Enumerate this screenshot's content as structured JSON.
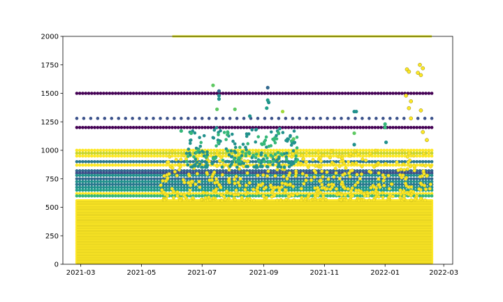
{
  "chart_data": {
    "type": "scatter",
    "title": "",
    "xlabel": "",
    "ylabel": "",
    "xlim": [
      "2021-02-11",
      "2022-03-10"
    ],
    "ylim": [
      0,
      2000
    ],
    "grid": false,
    "legend": "none",
    "x_ticks": [
      {
        "date": "2021-03-01",
        "label": "2021-03"
      },
      {
        "date": "2021-05-01",
        "label": "2021-05"
      },
      {
        "date": "2021-07-01",
        "label": "2021-07"
      },
      {
        "date": "2021-09-01",
        "label": "2021-09"
      },
      {
        "date": "2021-11-01",
        "label": "2021-11"
      },
      {
        "date": "2022-01-01",
        "label": "2022-01"
      },
      {
        "date": "2022-03-01",
        "label": "2022-03"
      }
    ],
    "y_ticks": [
      {
        "value": 0,
        "label": "0"
      },
      {
        "value": 250,
        "label": "250"
      },
      {
        "value": 500,
        "label": "500"
      },
      {
        "value": 750,
        "label": "750"
      },
      {
        "value": 1000,
        "label": "1000"
      },
      {
        "value": 1250,
        "label": "1250"
      },
      {
        "value": 1500,
        "label": "1500"
      },
      {
        "value": 1750,
        "label": "1750"
      },
      {
        "value": 2000,
        "label": "2000"
      }
    ],
    "colormap": "viridis",
    "x_start": "2021-02-25",
    "x_end": "2022-02-17",
    "horizontal_series": [
      {
        "y": 1500,
        "start": "2021-02-25",
        "end": "2022-02-17",
        "color": "#440154"
      },
      {
        "y": 1280,
        "start": "2021-02-25",
        "end": "2022-02-17",
        "color": "#3b528b"
      },
      {
        "y": 1200,
        "start": "2021-02-25",
        "end": "2022-02-17",
        "color": "#440154"
      },
      {
        "y": 1000,
        "start": "2021-02-25",
        "end": "2022-02-17",
        "color": "#fde725"
      },
      {
        "y": 975,
        "start": "2021-02-25",
        "end": "2022-02-17",
        "color": "#c7d62e"
      },
      {
        "y": 950,
        "start": "2021-02-25",
        "end": "2022-02-17",
        "color": "#fde725"
      },
      {
        "y": 900,
        "start": "2021-02-25",
        "end": "2022-02-17",
        "color": "#2a788e"
      },
      {
        "y": 870,
        "start": "2021-02-25",
        "end": "2022-02-17",
        "color": "#fde725"
      },
      {
        "y": 820,
        "start": "2021-02-25",
        "end": "2022-02-17",
        "color": "#31688e"
      },
      {
        "y": 800,
        "start": "2021-02-25",
        "end": "2022-02-17",
        "color": "#3e4a89"
      },
      {
        "y": 780,
        "start": "2021-02-25",
        "end": "2022-02-17",
        "color": "#21918c"
      },
      {
        "y": 750,
        "start": "2021-02-25",
        "end": "2022-02-17",
        "color": "#31688e"
      },
      {
        "y": 725,
        "start": "2021-02-25",
        "end": "2022-02-17",
        "color": "#21918c"
      },
      {
        "y": 700,
        "start": "2021-02-25",
        "end": "2022-02-17",
        "color": "#2a788e"
      },
      {
        "y": 675,
        "start": "2021-02-25",
        "end": "2022-02-17",
        "color": "#21918c"
      },
      {
        "y": 650,
        "start": "2021-02-25",
        "end": "2022-02-17",
        "color": "#1f9e89"
      },
      {
        "y": 620,
        "start": "2021-02-25",
        "end": "2022-02-17",
        "color": "#fde725"
      },
      {
        "y": 600,
        "start": "2021-02-25",
        "end": "2022-02-17",
        "color": "#35b779"
      },
      {
        "y": 2000,
        "start": "2021-06-01",
        "end": "2022-02-17",
        "color": "#dfe318"
      }
    ],
    "dense_band": {
      "y_min": 0,
      "y_max": 560,
      "start": "2021-02-25",
      "end": "2022-02-17",
      "color": "#fde725"
    },
    "scatter_clusters": [
      {
        "start": "2021-05-20",
        "end": "2022-02-17",
        "y_min": 560,
        "y_max": 1000,
        "color": "#fde725",
        "count": 520
      },
      {
        "start": "2021-06-15",
        "end": "2021-10-05",
        "y_min": 850,
        "y_max": 1200,
        "color": "#21918c",
        "count": 160
      },
      {
        "start": "2021-06-15",
        "end": "2021-10-05",
        "y_min": 900,
        "y_max": 1200,
        "color": "#35b779",
        "count": 70
      }
    ],
    "scatter_points": [
      {
        "date": "2021-07-12",
        "y": 1570,
        "color": "#5ec962"
      },
      {
        "date": "2021-07-18",
        "y": 1520,
        "color": "#31688e"
      },
      {
        "date": "2021-07-18",
        "y": 1480,
        "color": "#21918c"
      },
      {
        "date": "2021-07-18",
        "y": 1450,
        "color": "#21918c"
      },
      {
        "date": "2021-07-16",
        "y": 1360,
        "color": "#5ec962"
      },
      {
        "date": "2021-08-03",
        "y": 1360,
        "color": "#5ec962"
      },
      {
        "date": "2021-08-18",
        "y": 1300,
        "color": "#21918c"
      },
      {
        "date": "2021-09-05",
        "y": 1550,
        "color": "#31688e"
      },
      {
        "date": "2021-09-05",
        "y": 1440,
        "color": "#1f9e89"
      },
      {
        "date": "2021-09-06",
        "y": 1420,
        "color": "#21918c"
      },
      {
        "date": "2021-09-04",
        "y": 1370,
        "color": "#1f9e89"
      },
      {
        "date": "2021-09-20",
        "y": 1340,
        "color": "#9fda3a"
      },
      {
        "date": "2021-12-01",
        "y": 1340,
        "color": "#21918c"
      },
      {
        "date": "2021-12-03",
        "y": 1340,
        "color": "#21918c"
      },
      {
        "date": "2021-12-01",
        "y": 1150,
        "color": "#5ec962"
      },
      {
        "date": "2021-12-01",
        "y": 1050,
        "color": "#21918c"
      },
      {
        "date": "2022-01-01",
        "y": 1230,
        "color": "#35b779"
      },
      {
        "date": "2022-01-01",
        "y": 1200,
        "color": "#35b779"
      },
      {
        "date": "2022-01-02",
        "y": 1070,
        "color": "#21918c"
      },
      {
        "date": "2022-01-23",
        "y": 1710,
        "color": "#fde725"
      },
      {
        "date": "2022-01-25",
        "y": 1690,
        "color": "#fde725"
      },
      {
        "date": "2022-02-05",
        "y": 1750,
        "color": "#fde725"
      },
      {
        "date": "2022-02-08",
        "y": 1720,
        "color": "#fde725"
      },
      {
        "date": "2022-02-03",
        "y": 1680,
        "color": "#fde725"
      },
      {
        "date": "2022-02-06",
        "y": 1660,
        "color": "#fde725"
      },
      {
        "date": "2022-01-22",
        "y": 1480,
        "color": "#fde725"
      },
      {
        "date": "2022-01-27",
        "y": 1430,
        "color": "#fde725"
      },
      {
        "date": "2022-01-25",
        "y": 1370,
        "color": "#fde725"
      },
      {
        "date": "2022-02-06",
        "y": 1350,
        "color": "#fde725"
      },
      {
        "date": "2022-01-27",
        "y": 1280,
        "color": "#fde725"
      },
      {
        "date": "2022-02-08",
        "y": 1160,
        "color": "#fde725"
      },
      {
        "date": "2022-02-12",
        "y": 1090,
        "color": "#fde725"
      },
      {
        "date": "2021-06-10",
        "y": 1170,
        "color": "#35b779"
      },
      {
        "date": "2021-06-20",
        "y": 1150,
        "color": "#35b779"
      },
      {
        "date": "2021-10-01",
        "y": 1100,
        "color": "#5ec962"
      }
    ]
  }
}
